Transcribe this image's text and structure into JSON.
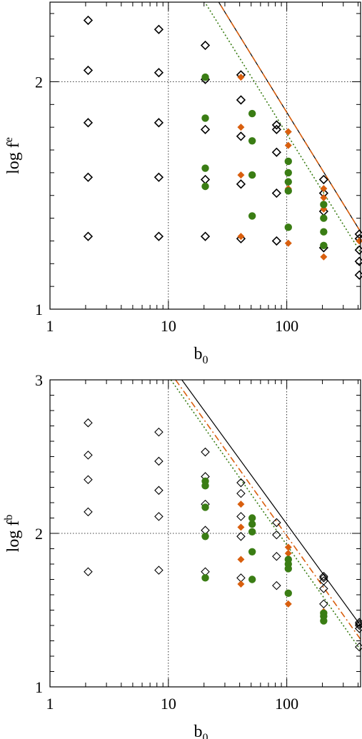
{
  "chart_data": [
    {
      "type": "scatter",
      "panel": "top",
      "xlabel": "b",
      "xlabel_sub": "0",
      "ylabel": "log f",
      "ylabel_sup": "e",
      "xscale": "log",
      "xlim": [
        1,
        420
      ],
      "ylim": [
        1,
        2.35
      ],
      "x_ticks": [
        {
          "value": 1,
          "label": "1"
        },
        {
          "value": 10,
          "label": "10"
        },
        {
          "value": 100,
          "label": "100"
        }
      ],
      "y_ticks": [
        {
          "value": 1,
          "label": "1"
        },
        {
          "value": 2,
          "label": "2"
        }
      ],
      "grid": true,
      "series": [
        {
          "marker": "open-diamond",
          "color": "#000000",
          "points": [
            [
              2.1,
              1.32
            ],
            [
              2.1,
              1.58
            ],
            [
              2.1,
              1.82
            ],
            [
              2.1,
              2.05
            ],
            [
              2.1,
              2.27
            ],
            [
              8.3,
              1.32
            ],
            [
              8.3,
              1.58
            ],
            [
              8.3,
              1.82
            ],
            [
              8.3,
              2.04
            ],
            [
              8.3,
              2.23
            ],
            [
              20.5,
              1.32
            ],
            [
              20.5,
              1.57
            ],
            [
              20.5,
              1.79
            ],
            [
              20.5,
              2.01
            ],
            [
              20.5,
              2.16
            ],
            [
              41,
              1.31
            ],
            [
              41,
              1.55
            ],
            [
              41,
              1.76
            ],
            [
              41,
              1.92
            ],
            [
              41,
              2.03
            ],
            [
              82,
              1.3
            ],
            [
              82,
              1.51
            ],
            [
              82,
              1.69
            ],
            [
              82,
              1.79
            ],
            [
              82,
              1.81
            ],
            [
              205,
              1.27
            ],
            [
              205,
              1.43
            ],
            [
              205,
              1.51
            ],
            [
              205,
              1.57
            ],
            [
              410,
              1.15
            ],
            [
              410,
              1.21
            ],
            [
              410,
              1.26
            ],
            [
              410,
              1.31
            ],
            [
              410,
              1.33
            ]
          ]
        },
        {
          "marker": "filled-diamond",
          "color": "#d95f0e",
          "points": [
            [
              41,
              1.32
            ],
            [
              41,
              1.59
            ],
            [
              41,
              1.8
            ],
            [
              41,
              2.02
            ],
            [
              103,
              1.29
            ],
            [
              103,
              1.53
            ],
            [
              103,
              1.72
            ],
            [
              103,
              1.78
            ],
            [
              205,
              1.23
            ],
            [
              205,
              1.44
            ],
            [
              205,
              1.49
            ],
            [
              205,
              1.53
            ],
            [
              410,
              1.3
            ]
          ]
        },
        {
          "marker": "filled-circle",
          "color": "#3a7d14",
          "points": [
            [
              20.5,
              1.54
            ],
            [
              20.5,
              1.62
            ],
            [
              20.5,
              1.84
            ],
            [
              20.5,
              2.02
            ],
            [
              51,
              1.41
            ],
            [
              51,
              1.59
            ],
            [
              51,
              1.74
            ],
            [
              51,
              1.86
            ],
            [
              103,
              1.36
            ],
            [
              103,
              1.52
            ],
            [
              103,
              1.56
            ],
            [
              103,
              1.6
            ],
            [
              103,
              1.65
            ],
            [
              205,
              1.28
            ],
            [
              205,
              1.34
            ],
            [
              205,
              1.4
            ],
            [
              205,
              1.46
            ]
          ]
        }
      ],
      "lines": [
        {
          "style": "solid",
          "color": "#000000",
          "from": [
            15,
            2.56
          ],
          "to": [
            420,
            1.34
          ]
        },
        {
          "style": "dashed",
          "color": "#d95f0e",
          "from": [
            15,
            2.56
          ],
          "to": [
            420,
            1.34
          ]
        },
        {
          "style": "dotted",
          "color": "#3a7d14",
          "from": [
            15,
            2.46
          ],
          "to": [
            420,
            1.25
          ]
        }
      ]
    },
    {
      "type": "scatter",
      "panel": "bottom",
      "xlabel": "b",
      "xlabel_sub": "0",
      "ylabel": "log f",
      "ylabel_sup": "b",
      "xscale": "log",
      "xlim": [
        1,
        420
      ],
      "ylim": [
        1,
        3
      ],
      "x_ticks": [
        {
          "value": 1,
          "label": "1"
        },
        {
          "value": 10,
          "label": "10"
        },
        {
          "value": 100,
          "label": "100"
        }
      ],
      "y_ticks": [
        {
          "value": 1,
          "label": "1"
        },
        {
          "value": 2,
          "label": "2"
        },
        {
          "value": 3,
          "label": "3"
        }
      ],
      "grid": true,
      "series": [
        {
          "marker": "open-diamond",
          "color": "#000000",
          "points": [
            [
              2.1,
              1.75
            ],
            [
              2.1,
              2.14
            ],
            [
              2.1,
              2.35
            ],
            [
              2.1,
              2.51
            ],
            [
              2.1,
              2.72
            ],
            [
              8.3,
              1.76
            ],
            [
              8.3,
              2.11
            ],
            [
              8.3,
              2.28
            ],
            [
              8.3,
              2.47
            ],
            [
              8.3,
              2.66
            ],
            [
              20.5,
              1.75
            ],
            [
              20.5,
              2.02
            ],
            [
              20.5,
              2.19
            ],
            [
              20.5,
              2.37
            ],
            [
              20.5,
              2.53
            ],
            [
              41,
              1.71
            ],
            [
              41,
              1.98
            ],
            [
              41,
              2.11
            ],
            [
              41,
              2.26
            ],
            [
              41,
              2.33
            ],
            [
              82,
              1.66
            ],
            [
              82,
              1.85
            ],
            [
              82,
              1.99
            ],
            [
              82,
              2.07
            ],
            [
              205,
              1.54
            ],
            [
              205,
              1.64
            ],
            [
              205,
              1.69
            ],
            [
              205,
              1.71
            ],
            [
              205,
              1.72
            ],
            [
              410,
              1.26
            ],
            [
              410,
              1.38
            ],
            [
              410,
              1.4
            ],
            [
              410,
              1.41
            ],
            [
              410,
              1.42
            ]
          ]
        },
        {
          "marker": "filled-diamond",
          "color": "#d95f0e",
          "points": [
            [
              41,
              1.67
            ],
            [
              41,
              1.83
            ],
            [
              41,
              2.04
            ],
            [
              41,
              2.19
            ],
            [
              103,
              1.54
            ],
            [
              103,
              1.77
            ],
            [
              103,
              1.87
            ],
            [
              103,
              1.91
            ],
            [
              205,
              1.46
            ],
            [
              205,
              1.47
            ],
            [
              205,
              1.49
            ]
          ]
        },
        {
          "marker": "filled-circle",
          "color": "#3a7d14",
          "points": [
            [
              20.5,
              1.71
            ],
            [
              20.5,
              1.98
            ],
            [
              20.5,
              2.17
            ],
            [
              20.5,
              2.31
            ],
            [
              20.5,
              2.34
            ],
            [
              51,
              1.7
            ],
            [
              51,
              1.88
            ],
            [
              51,
              2.01
            ],
            [
              51,
              2.06
            ],
            [
              51,
              2.1
            ],
            [
              103,
              1.61
            ],
            [
              103,
              1.77
            ],
            [
              103,
              1.8
            ],
            [
              103,
              1.83
            ],
            [
              205,
              1.43
            ],
            [
              205,
              1.46
            ],
            [
              205,
              1.48
            ]
          ]
        }
      ],
      "lines": [
        {
          "style": "solid",
          "color": "#000000",
          "from": [
            13,
            3.0
          ],
          "to": [
            420,
            1.4
          ]
        },
        {
          "style": "dashdot",
          "color": "#d95f0e",
          "from": [
            11.5,
            3.0
          ],
          "to": [
            420,
            1.31
          ]
        },
        {
          "style": "dotted",
          "color": "#3a7d14",
          "from": [
            10.5,
            3.0
          ],
          "to": [
            420,
            1.24
          ]
        }
      ]
    }
  ]
}
